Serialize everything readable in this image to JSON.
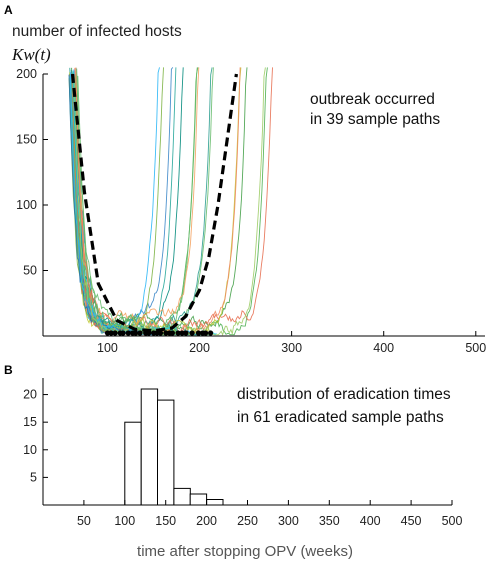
{
  "chart_data": [
    {
      "panel": "A",
      "type": "line",
      "ylabel_line1": "number of infected hosts",
      "ylabel_line2": "Kw(t)",
      "annotation_line1": "outbreak occurred",
      "annotation_line2": "in 39 sample paths",
      "xlim": [
        30,
        510
      ],
      "ylim": [
        0,
        200
      ],
      "x_ticks": [
        "100",
        "200",
        "300",
        "400",
        "500"
      ],
      "y_ticks": [
        "50",
        "100",
        "150",
        "200"
      ],
      "series_count": 100,
      "outbreak_paths": 39,
      "mean_path": {
        "style": "dashed-black",
        "x": [
          62,
          75,
          90,
          110,
          130,
          150,
          170,
          185,
          200,
          210,
          220,
          230,
          240
        ],
        "y": [
          200,
          110,
          40,
          12,
          5,
          4,
          6,
          15,
          35,
          60,
          100,
          150,
          200
        ]
      },
      "eradication_marks_range": [
        100,
        215
      ]
    },
    {
      "panel": "B",
      "type": "bar",
      "title_line1": "distribution of eradication times",
      "title_line2": "in 61 eradicated sample paths",
      "xlabel": "time after stopping OPV (weeks)",
      "xlim": [
        0,
        500
      ],
      "ylim": [
        0,
        23
      ],
      "x_ticks": [
        "50",
        "100",
        "150",
        "200",
        "250",
        "300",
        "350",
        "400",
        "450",
        "500"
      ],
      "y_ticks": [
        "5",
        "10",
        "15",
        "20"
      ],
      "bin_width": 20,
      "bins": [
        {
          "start": 100,
          "count": 15
        },
        {
          "start": 120,
          "count": 21
        },
        {
          "start": 140,
          "count": 19
        },
        {
          "start": 160,
          "count": 3
        },
        {
          "start": 180,
          "count": 2
        },
        {
          "start": 200,
          "count": 1
        }
      ]
    }
  ]
}
